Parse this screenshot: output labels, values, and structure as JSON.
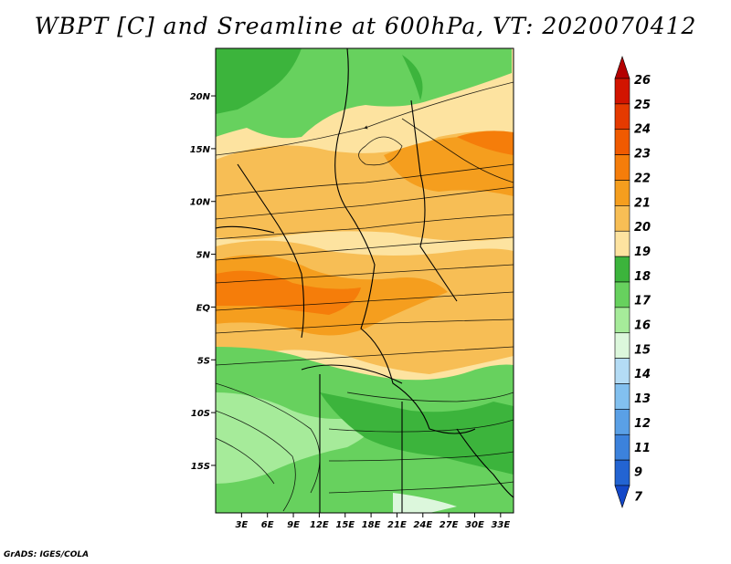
{
  "title": "WBPT [C] and Sreamline at 600hPa, VT: 2020070412",
  "footer": "GrADS: IGES/COLA",
  "map": {
    "lon_labels": [
      "3E",
      "6E",
      "9E",
      "12E",
      "15E",
      "18E",
      "21E",
      "24E",
      "27E",
      "30E",
      "33E"
    ],
    "lat_labels": [
      "20N",
      "15N",
      "10N",
      "5N",
      "EQ",
      "5S",
      "10S",
      "15S"
    ],
    "lon_range": [
      0,
      34.5
    ],
    "lat_range": [
      -19.5,
      24.5
    ]
  },
  "colorbar": {
    "labels": [
      "26",
      "25",
      "24",
      "23",
      "22",
      "21",
      "20",
      "19",
      "18",
      "17",
      "16",
      "15",
      "14",
      "13",
      "12",
      "11",
      "9",
      "7"
    ],
    "colors": [
      "#b40000",
      "#d21400",
      "#e53a00",
      "#f05a00",
      "#f57d0a",
      "#f59e1e",
      "#f7be55",
      "#fde3a0",
      "#3cb43c",
      "#67d15e",
      "#a6eb9a",
      "#dcf7dc",
      "#b4dcf5",
      "#82c0ef",
      "#5aa0e6",
      "#3c82dc",
      "#2364d2",
      "#1448c8"
    ]
  }
}
